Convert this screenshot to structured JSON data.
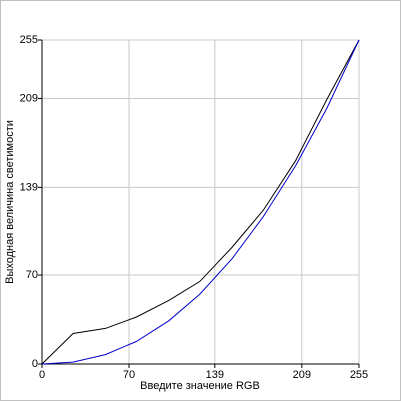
{
  "chart_data": {
    "type": "line",
    "x_label": "Введите значение RGB",
    "y_label": "Выходная величина светимости",
    "x": [
      0,
      25,
      51,
      76,
      102,
      127,
      153,
      178,
      204,
      229,
      255
    ],
    "series": [
      {
        "color": "#000000",
        "values": [
          0,
          24,
          28,
          37,
          50,
          65,
          92,
          121,
          160,
          208,
          255
        ]
      },
      {
        "color": "#0000cc",
        "values": [
          0,
          1.5,
          7.4,
          17.8,
          34,
          55,
          83,
          116,
          156,
          201,
          255
        ]
      }
    ],
    "xlim": [
      0,
      255
    ],
    "ylim": [
      0,
      255
    ],
    "xticks": [
      0,
      70,
      139,
      209,
      255
    ],
    "yticks": [
      0,
      70,
      139,
      209,
      255
    ],
    "grid": true
  }
}
